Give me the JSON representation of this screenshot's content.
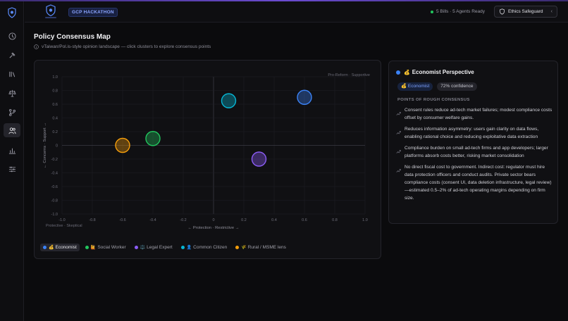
{
  "header": {
    "badge": "GCP HACKATHON",
    "status": "5 Bills · 5 Agents Ready",
    "ethics_label": "Ethics Safeguard"
  },
  "page": {
    "title": "Policy Consensus Map",
    "subtitle": "vTaiwan/Pol.is-style opinion landscape — click clusters to explore consensus points"
  },
  "chart_data": {
    "type": "scatter",
    "xlabel": "← Protection · Restrictive →",
    "ylabel": "← Concerns · Support →",
    "xlim": [
      -1.0,
      1.0
    ],
    "ylim": [
      -1.0,
      1.0
    ],
    "xticks": [
      "-1.0",
      "-0.8",
      "-0.6",
      "-0.4",
      "-0.2",
      "0",
      "0.2",
      "0.4",
      "0.6",
      "0.8",
      "1.0"
    ],
    "yticks": [
      "1.0",
      "0.8",
      "0.6",
      "0.4",
      "0.2",
      "0",
      "-0.2",
      "-0.4",
      "-0.6",
      "-0.8",
      "-1.0"
    ],
    "grid": true,
    "corner_top_right": "Pro-Reform · Supportive",
    "corner_bottom_left": "Protective · Skeptical",
    "series": [
      {
        "name": "Economist",
        "x": 0.6,
        "y": 0.7,
        "color": "#3b82f6"
      },
      {
        "name": "Social Worker",
        "x": -0.4,
        "y": 0.1,
        "color": "#22c55e"
      },
      {
        "name": "Legal Expert",
        "x": 0.3,
        "y": -0.2,
        "color": "#8b5cf6"
      },
      {
        "name": "Common Citizen",
        "x": 0.1,
        "y": 0.65,
        "color": "#06b6d4"
      },
      {
        "name": "Rural / MSME lens",
        "x": -0.6,
        "y": 0.0,
        "color": "#f59e0b"
      }
    ]
  },
  "legend": [
    {
      "label": "Economist",
      "emoji": "💰",
      "color": "#3b82f6",
      "active": true
    },
    {
      "label": "Social Worker",
      "emoji": "🙋",
      "color": "#22c55e",
      "active": false
    },
    {
      "label": "Legal Expert",
      "emoji": "⚖️",
      "color": "#8b5cf6",
      "active": false
    },
    {
      "label": "Common Citizen",
      "emoji": "👤",
      "color": "#06b6d4",
      "active": false
    },
    {
      "label": "Rural / MSME lens",
      "emoji": "🌾",
      "color": "#f59e0b",
      "active": false
    }
  ],
  "panel": {
    "emoji": "💰",
    "title": "Economist Perspective",
    "chip_name": "💰 Economist",
    "confidence": "72% confidence",
    "section": "POINTS OF ROUGH CONSENSUS",
    "points": [
      "Consent rules reduce ad-tech market failures; modest compliance costs offset by consumer welfare gains.",
      "Reduces information asymmetry: users gain clarity on data flows, enabling rational choice and reducing exploitative data extraction",
      "Compliance burden on small ad-tech firms and app developers; larger platforms absorb costs better, risking market consolidation",
      "No direct fiscal cost to government. Indirect cost: regulator must hire data protection officers and conduct audits. Private sector bears compliance costs (consent UI, data deletion infrastructure, legal review)—estimated 0.5–2% of ad-tech operating margins depending on firm size."
    ]
  },
  "icons": {
    "rail": [
      "shield-logo-icon",
      "compass-icon",
      "gavel-icon",
      "library-icon",
      "scales-icon",
      "git-branch-icon",
      "users-icon",
      "bar-chart-icon",
      "sliders-icon"
    ],
    "subtitle": "info-icon",
    "ethics": "shield-icon",
    "point": "trend-icon"
  }
}
